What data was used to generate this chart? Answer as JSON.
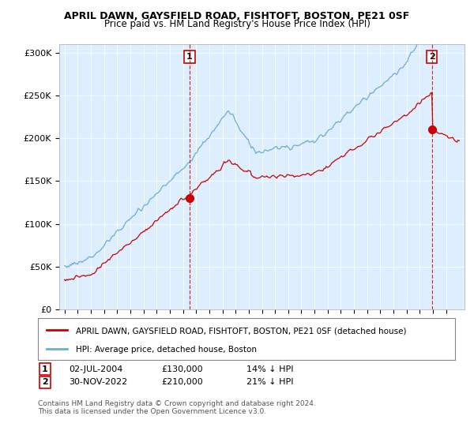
{
  "title": "APRIL DAWN, GAYSFIELD ROAD, FISHTOFT, BOSTON, PE21 0SF",
  "subtitle": "Price paid vs. HM Land Registry's House Price Index (HPI)",
  "ylabel_ticks": [
    "£0",
    "£50K",
    "£100K",
    "£150K",
    "£200K",
    "£250K",
    "£300K"
  ],
  "ytick_values": [
    0,
    50000,
    100000,
    150000,
    200000,
    250000,
    300000
  ],
  "ylim": [
    0,
    310000
  ],
  "sale1_year": 2004.5,
  "sale1_price": 130000,
  "sale2_year": 2022.92,
  "sale2_price": 210000,
  "hpi_color": "#6aaed6",
  "price_color": "#cc0000",
  "bg_color": "#ffffff",
  "plot_bg_color": "#ddeeff",
  "grid_color": "#ffffff",
  "legend_entry1": "APRIL DAWN, GAYSFIELD ROAD, FISHTOFT, BOSTON, PE21 0SF (detached house)",
  "legend_entry2": "HPI: Average price, detached house, Boston",
  "sale1_date_str": "02-JUL-2004",
  "sale1_price_str": "£130,000",
  "sale1_pct_str": "14% ↓ HPI",
  "sale2_date_str": "30-NOV-2022",
  "sale2_price_str": "£210,000",
  "sale2_pct_str": "21% ↓ HPI",
  "copyright": "Contains HM Land Registry data © Crown copyright and database right 2024.\nThis data is licensed under the Open Government Licence v3.0."
}
